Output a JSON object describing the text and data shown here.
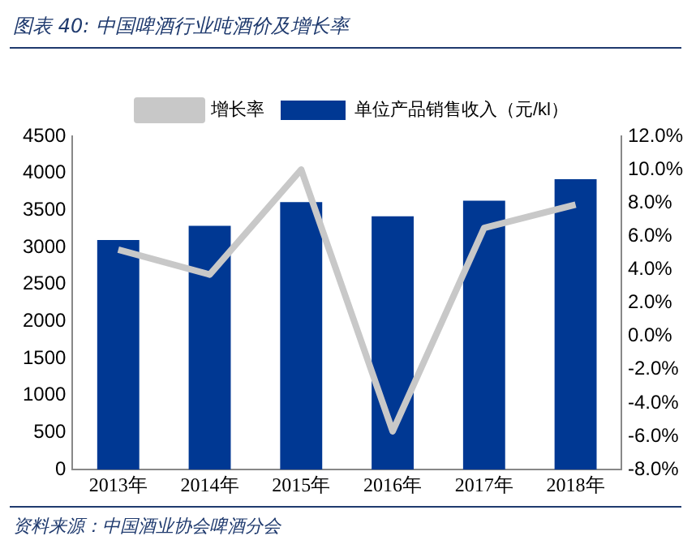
{
  "chart_data": {
    "type": "bar",
    "title": "图表 40:  中国啤酒行业吨酒价及增长率",
    "categories": [
      "2013年",
      "2014年",
      "2015年",
      "2016年",
      "2017年",
      "2018年"
    ],
    "series": [
      {
        "name": "单位产品销售收入（元/kl）",
        "color": "#003893",
        "values": [
          3100,
          3290,
          3610,
          3420,
          3630,
          3920
        ]
      },
      {
        "name": "增长率",
        "type": "line",
        "axis": "y2",
        "color": "#c8c8c8",
        "marker": "none",
        "values": [
          5.2,
          3.7,
          10.0,
          -5.7,
          6.5,
          7.9
        ]
      }
    ],
    "ylim": [
      0,
      4500
    ],
    "yticks": [
      0,
      500,
      1000,
      1500,
      2000,
      2500,
      3000,
      3500,
      4000,
      4500
    ],
    "y2lim": [
      -8,
      12
    ],
    "y2ticks": [
      {
        "value": -8,
        "label": "-8.0%"
      },
      {
        "value": -6,
        "label": "-6.0%"
      },
      {
        "value": -4,
        "label": "-4.0%"
      },
      {
        "value": -2,
        "label": "-2.0%"
      },
      {
        "value": 0,
        "label": "0.0%"
      },
      {
        "value": 2,
        "label": "2.0%"
      },
      {
        "value": 4,
        "label": "4.0%"
      },
      {
        "value": 6,
        "label": "6.0%"
      },
      {
        "value": 8,
        "label": "8.0%"
      },
      {
        "value": 10,
        "label": "10.0%"
      },
      {
        "value": 12,
        "label": "12.0%"
      }
    ],
    "grid": false,
    "legend": "top",
    "annotations": [
      "资料来源：中国酒业协会啤酒分会"
    ]
  }
}
